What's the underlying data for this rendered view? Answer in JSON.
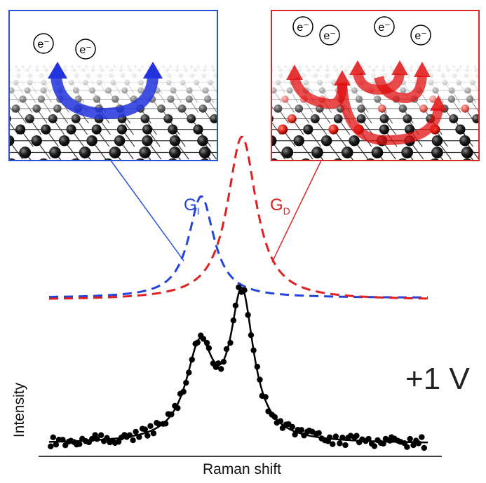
{
  "left_panel": {
    "electrons": [
      "e⁻",
      "e⁻"
    ]
  },
  "right_panel": {
    "electrons": [
      "e⁻",
      "e⁻",
      "e⁻",
      "e⁻"
    ]
  },
  "peaks": [
    {
      "label": "G",
      "subscript": "I"
    },
    {
      "label": "G",
      "subscript": "D"
    }
  ],
  "voltage": "+1 V",
  "y_axis_label": "Intensity",
  "x_axis_label": "Raman shift"
}
